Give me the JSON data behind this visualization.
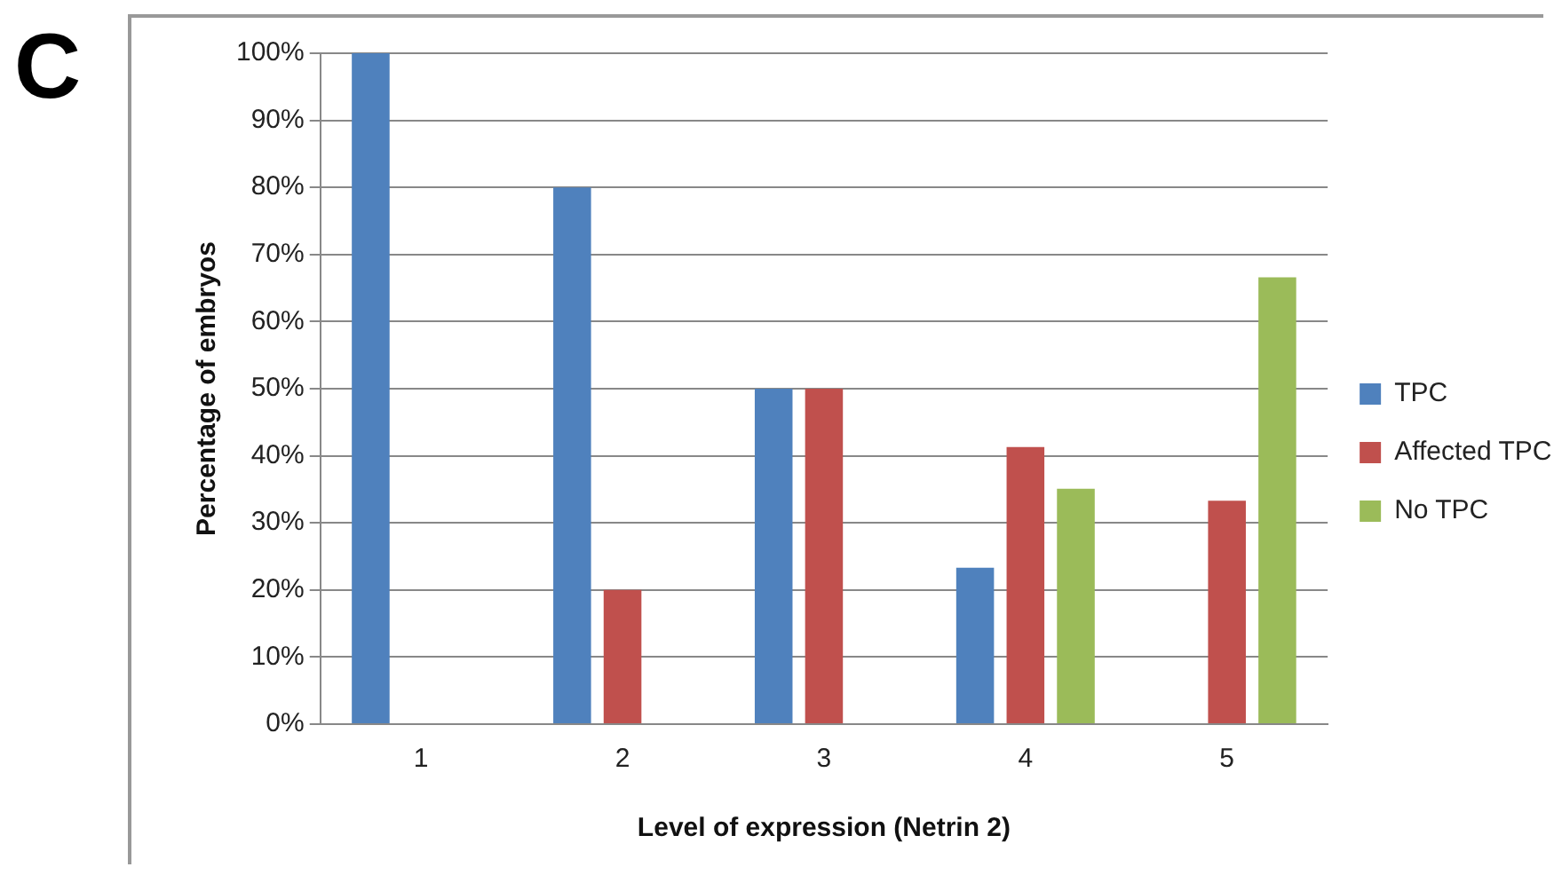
{
  "chart_data": {
    "type": "bar",
    "annotations": [
      "C"
    ],
    "xlabel": "Level of expression (Netrin 2)",
    "ylabel": "Percentage of embryos",
    "categories": [
      "1",
      "2",
      "3",
      "4",
      "5"
    ],
    "series": [
      {
        "name": "TPC",
        "color": "#4f81bd",
        "values": [
          100,
          80,
          50,
          23.3,
          0
        ]
      },
      {
        "name": "Affected TPC",
        "color": "#c0504d",
        "values": [
          0,
          20,
          50,
          41.3,
          33.3
        ]
      },
      {
        "name": "No TPC",
        "color": "#9bbb59",
        "values": [
          0,
          0,
          0,
          35.1,
          66.6
        ]
      }
    ],
    "ylim": [
      0,
      100
    ],
    "yticks": [
      {
        "value": 0,
        "label": "0%"
      },
      {
        "value": 10,
        "label": "10%"
      },
      {
        "value": 20,
        "label": "20%"
      },
      {
        "value": 30,
        "label": "30%"
      },
      {
        "value": 40,
        "label": "40%"
      },
      {
        "value": 50,
        "label": "50%"
      },
      {
        "value": 60,
        "label": "60%"
      },
      {
        "value": 70,
        "label": "70%"
      },
      {
        "value": 80,
        "label": "80%"
      },
      {
        "value": 90,
        "label": "90%"
      },
      {
        "value": 100,
        "label": "100%"
      }
    ],
    "grid": "y",
    "legend": "right"
  }
}
